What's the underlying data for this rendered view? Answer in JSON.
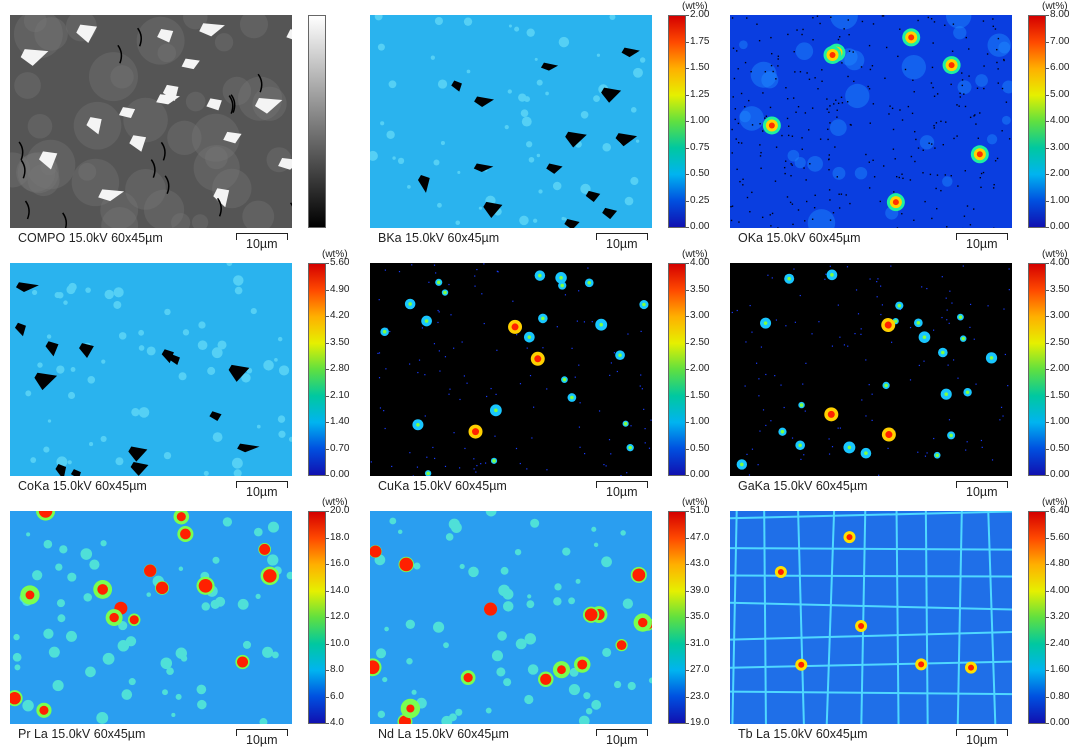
{
  "panels": [
    {
      "id": "compo",
      "caption": "COMPO 15.0kV 60x45µm",
      "scale": "10µm",
      "unit": "",
      "ticks": [],
      "colormap": "gray",
      "pattern": "compo"
    },
    {
      "id": "bka",
      "caption": "BKa 15.0kV 60x45µm",
      "scale": "10µm",
      "unit": "(wt%)",
      "ticks": [
        "2.00",
        "1.75",
        "1.50",
        "1.25",
        "1.00",
        "0.75",
        "0.50",
        "0.25",
        "0.00"
      ],
      "colormap": "jet",
      "pattern": "holes"
    },
    {
      "id": "oka",
      "caption": "OKa 15.0kV 60x45µm",
      "scale": "10µm",
      "unit": "(wt%)",
      "ticks": [
        "8.00",
        "7.00",
        "6.00",
        "5.00",
        "4.00",
        "3.00",
        "2.00",
        "1.00",
        "0.00"
      ],
      "colormap": "jet",
      "pattern": "oxide"
    },
    {
      "id": "coka",
      "caption": "CoKa 15.0kV 60x45µm",
      "scale": "10µm",
      "unit": "(wt%)",
      "ticks": [
        "5.60",
        "4.90",
        "4.20",
        "3.50",
        "2.80",
        "2.10",
        "1.40",
        "0.70",
        "0.00"
      ],
      "colormap": "jet",
      "pattern": "holes"
    },
    {
      "id": "cuka",
      "caption": "CuKa 15.0kV 60x45µm",
      "scale": "10µm",
      "unit": "(wt%)",
      "ticks": [
        "4.00",
        "3.50",
        "3.00",
        "2.50",
        "2.00",
        "1.50",
        "1.00",
        "0.50",
        "0.00"
      ],
      "colormap": "jet",
      "pattern": "sparse"
    },
    {
      "id": "gaka",
      "caption": "GaKa 15.0kV 60x45µm",
      "scale": "10µm",
      "unit": "(wt%)",
      "ticks": [
        "4.00",
        "3.50",
        "3.00",
        "2.50",
        "2.00",
        "1.50",
        "1.00",
        "0.50",
        "0.00"
      ],
      "colormap": "jet",
      "pattern": "sparse"
    },
    {
      "id": "prla",
      "caption": "Pr La 15.0kV 60x45µm",
      "scale": "10µm",
      "unit": "(wt%)",
      "ticks": [
        "20.0",
        "18.0",
        "16.0",
        "14.0",
        "12.0",
        "10.0",
        "8.0",
        "6.0",
        "4.0"
      ],
      "colormap": "jet",
      "pattern": "rare"
    },
    {
      "id": "ndla",
      "caption": "Nd La 15.0kV 60x45µm",
      "scale": "10µm",
      "unit": "(wt%)",
      "ticks": [
        "51.0",
        "47.0",
        "43.0",
        "39.0",
        "35.0",
        "31.0",
        "27.0",
        "23.0",
        "19.0"
      ],
      "colormap": "jet",
      "pattern": "rare"
    },
    {
      "id": "tbla",
      "caption": "Tb La 15.0kV 60x45µm",
      "scale": "10µm",
      "unit": "(wt%)",
      "ticks": [
        "6.40",
        "5.60",
        "4.80",
        "4.00",
        "3.20",
        "2.40",
        "1.60",
        "0.80",
        "0.00"
      ],
      "colormap": "jet",
      "pattern": "grains"
    }
  ]
}
